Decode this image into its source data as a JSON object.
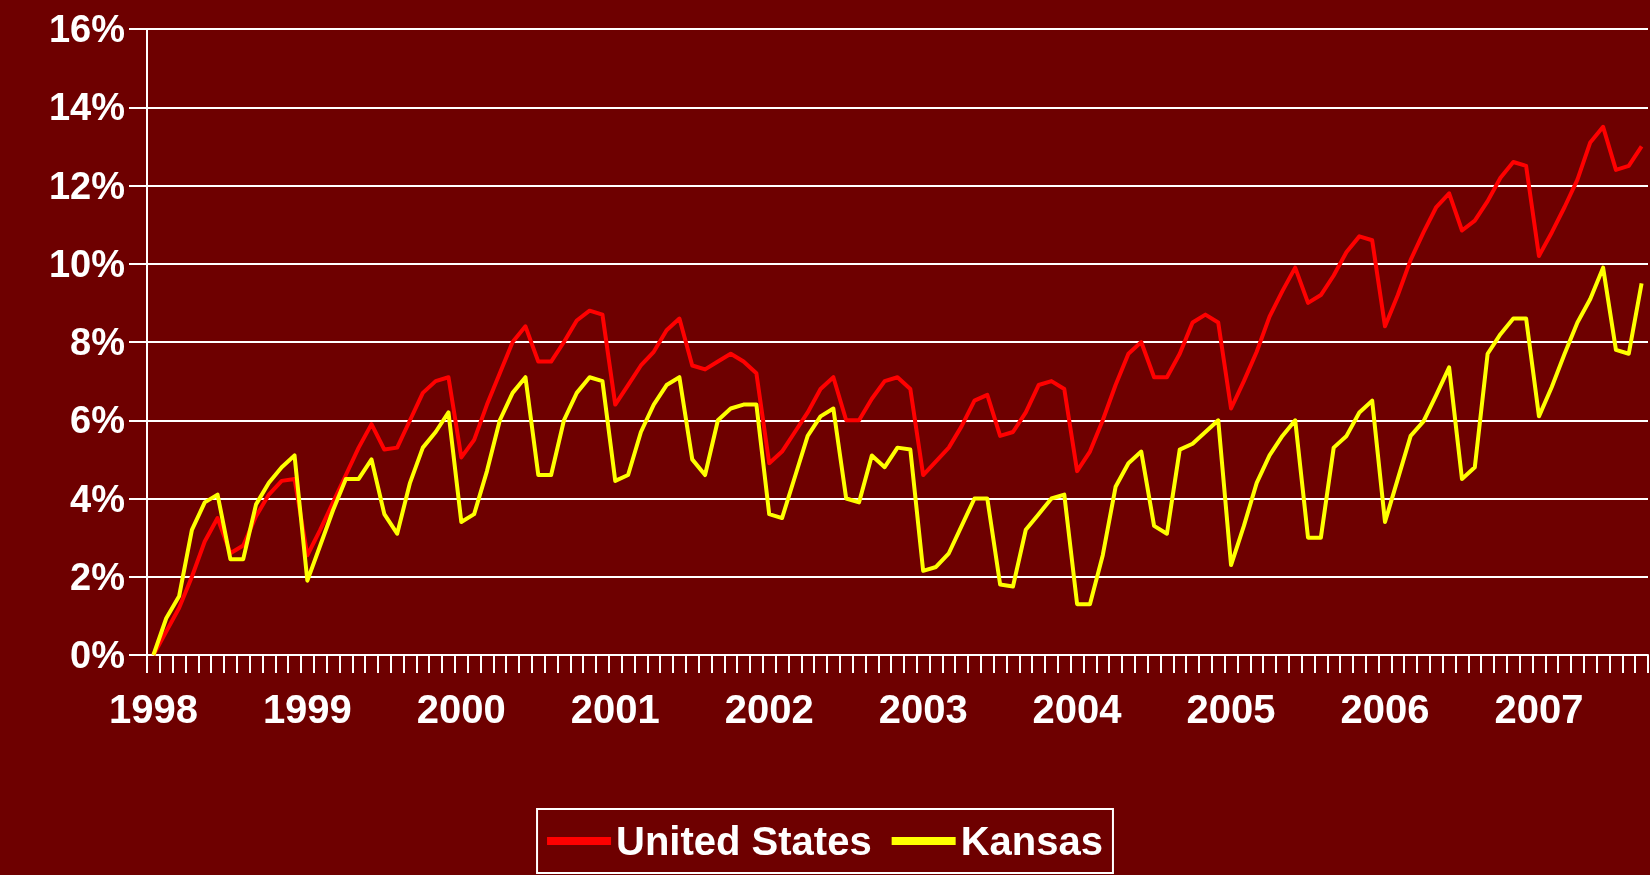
{
  "chart_data": {
    "type": "line",
    "categories": [
      "1998",
      null,
      null,
      null,
      null,
      null,
      null,
      null,
      null,
      null,
      null,
      null,
      "1999",
      null,
      null,
      null,
      null,
      null,
      null,
      null,
      null,
      null,
      null,
      null,
      "2000",
      null,
      null,
      null,
      null,
      null,
      null,
      null,
      null,
      null,
      null,
      null,
      "2001",
      null,
      null,
      null,
      null,
      null,
      null,
      null,
      null,
      null,
      null,
      null,
      "2002",
      null,
      null,
      null,
      null,
      null,
      null,
      null,
      null,
      null,
      null,
      null,
      "2003",
      null,
      null,
      null,
      null,
      null,
      null,
      null,
      null,
      null,
      null,
      null,
      "2004",
      null,
      null,
      null,
      null,
      null,
      null,
      null,
      null,
      null,
      null,
      null,
      "2005",
      null,
      null,
      null,
      null,
      null,
      null,
      null,
      null,
      null,
      null,
      null,
      "2006",
      null,
      null,
      null,
      null,
      null,
      null,
      null,
      null,
      null,
      null,
      null,
      "2007",
      null,
      null,
      null,
      null,
      null,
      null,
      null,
      null
    ],
    "series": [
      {
        "name": "United States",
        "color": "#ff0000",
        "values": [
          0,
          0.6,
          1.2,
          2.0,
          2.9,
          3.5,
          2.6,
          2.8,
          3.55,
          4.1,
          4.45,
          4.5,
          2.55,
          3.2,
          3.9,
          4.6,
          5.3,
          5.9,
          5.25,
          5.3,
          6.0,
          6.7,
          7.0,
          7.1,
          5.05,
          5.5,
          6.4,
          7.2,
          8.0,
          8.4,
          7.5,
          7.5,
          8.0,
          8.55,
          8.8,
          8.7,
          6.4,
          6.9,
          7.4,
          7.75,
          8.3,
          8.6,
          7.4,
          7.3,
          7.5,
          7.7,
          7.5,
          7.2,
          4.9,
          5.2,
          5.7,
          6.2,
          6.8,
          7.1,
          6.0,
          6.0,
          6.55,
          7.0,
          7.1,
          6.8,
          4.6,
          4.95,
          5.3,
          5.85,
          6.5,
          6.65,
          5.6,
          5.7,
          6.2,
          6.9,
          7.0,
          6.8,
          4.7,
          5.2,
          6.0,
          6.9,
          7.7,
          8.0,
          7.1,
          7.1,
          7.7,
          8.5,
          8.7,
          8.5,
          6.3,
          7.0,
          7.75,
          8.65,
          9.3,
          9.9,
          9.0,
          9.2,
          9.7,
          10.3,
          10.7,
          10.6,
          8.4,
          9.2,
          10.1,
          10.8,
          11.45,
          11.8,
          10.85,
          11.1,
          11.6,
          12.2,
          12.6,
          12.5,
          10.2,
          10.8,
          11.45,
          12.15,
          13.1,
          13.5,
          12.4,
          12.5,
          13.0
        ]
      },
      {
        "name": "Kansas",
        "color": "#ffff00",
        "values": [
          0,
          0.94,
          1.5,
          3.2,
          3.9,
          4.1,
          2.45,
          2.45,
          3.85,
          4.4,
          4.8,
          5.1,
          1.9,
          2.8,
          3.7,
          4.5,
          4.5,
          5.0,
          3.6,
          3.1,
          4.4,
          5.3,
          5.7,
          6.2,
          3.4,
          3.6,
          4.7,
          6.0,
          6.7,
          7.1,
          4.6,
          4.6,
          6.0,
          6.7,
          7.1,
          7.0,
          4.45,
          4.6,
          5.7,
          6.4,
          6.9,
          7.1,
          5.0,
          4.6,
          6.0,
          6.3,
          6.4,
          6.4,
          3.6,
          3.5,
          4.55,
          5.6,
          6.1,
          6.3,
          4.0,
          3.9,
          5.1,
          4.8,
          5.3,
          5.25,
          2.15,
          2.25,
          2.6,
          3.3,
          4.0,
          4.0,
          1.8,
          1.75,
          3.2,
          3.6,
          4.0,
          4.1,
          1.3,
          1.3,
          2.55,
          4.3,
          4.9,
          5.2,
          3.3,
          3.1,
          5.25,
          5.4,
          5.7,
          6.0,
          2.3,
          3.3,
          4.4,
          5.1,
          5.6,
          6.0,
          3.0,
          3.0,
          5.3,
          5.6,
          6.2,
          6.5,
          3.4,
          4.5,
          5.6,
          5.97,
          6.65,
          7.35,
          4.5,
          4.8,
          7.7,
          8.2,
          8.6,
          8.6,
          6.1,
          6.85,
          7.7,
          8.5,
          9.1,
          9.9,
          7.8,
          7.7,
          9.5
        ]
      }
    ],
    "ylim": [
      0,
      16
    ],
    "yticks": [
      {
        "value": 0,
        "label": "0%"
      },
      {
        "value": 2,
        "label": "2%"
      },
      {
        "value": 4,
        "label": "4%"
      },
      {
        "value": 6,
        "label": "6%"
      },
      {
        "value": 8,
        "label": "8%"
      },
      {
        "value": 10,
        "label": "10%"
      },
      {
        "value": 12,
        "label": "12%"
      },
      {
        "value": 14,
        "label": "14%"
      },
      {
        "value": 16,
        "label": "16%"
      }
    ],
    "grid": "y",
    "legend": "bottom"
  }
}
